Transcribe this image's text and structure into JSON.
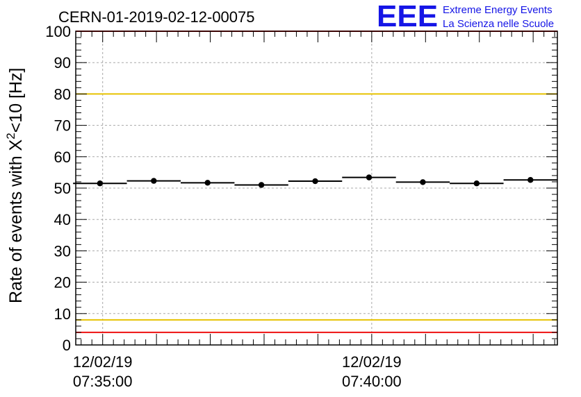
{
  "chart_data": {
    "type": "scatter",
    "title": "CERN-01-2019-02-12-00075",
    "ylabel_main": "Rate of events with Χ",
    "ylabel_sup": "2",
    "ylabel_rest": "<10 [Hz]",
    "ylim": [
      0,
      100
    ],
    "y_ticks": [
      0,
      10,
      20,
      30,
      40,
      50,
      60,
      70,
      80,
      90,
      100
    ],
    "x_unit": "minutes since 12/02/19 07:35:00",
    "x_range": [
      -0.5,
      8.45
    ],
    "x_tick_labels": [
      {
        "x": 0,
        "date": "12/02/19",
        "time": "07:35:00"
      },
      {
        "x": 5,
        "date": "12/02/19",
        "time": "07:40:00"
      }
    ],
    "grid": true,
    "reference_lines": [
      {
        "y": 100,
        "color": "#ee1111"
      },
      {
        "y": 80,
        "color": "#e6c200"
      },
      {
        "y": 8,
        "color": "#e6c200"
      },
      {
        "y": 4,
        "color": "#ee1111"
      }
    ],
    "series": [
      {
        "points": [
          {
            "x": -0.05,
            "y": 51.5,
            "x_err": 0.5
          },
          {
            "x": 0.95,
            "y": 52.3,
            "x_err": 0.5
          },
          {
            "x": 1.95,
            "y": 51.7,
            "x_err": 0.5
          },
          {
            "x": 2.95,
            "y": 51.0,
            "x_err": 0.5
          },
          {
            "x": 3.95,
            "y": 52.2,
            "x_err": 0.5
          },
          {
            "x": 4.95,
            "y": 53.4,
            "x_err": 0.5
          },
          {
            "x": 5.95,
            "y": 51.9,
            "x_err": 0.5
          },
          {
            "x": 6.95,
            "y": 51.5,
            "x_err": 0.5
          },
          {
            "x": 7.95,
            "y": 52.6,
            "x_err": 0.5
          }
        ],
        "color": "#000000"
      }
    ]
  },
  "logo": {
    "mark": "EEE",
    "line1": "Extreme Energy Events",
    "line2": "La Scienza nelle Scuole",
    "color": "#1515e6"
  }
}
